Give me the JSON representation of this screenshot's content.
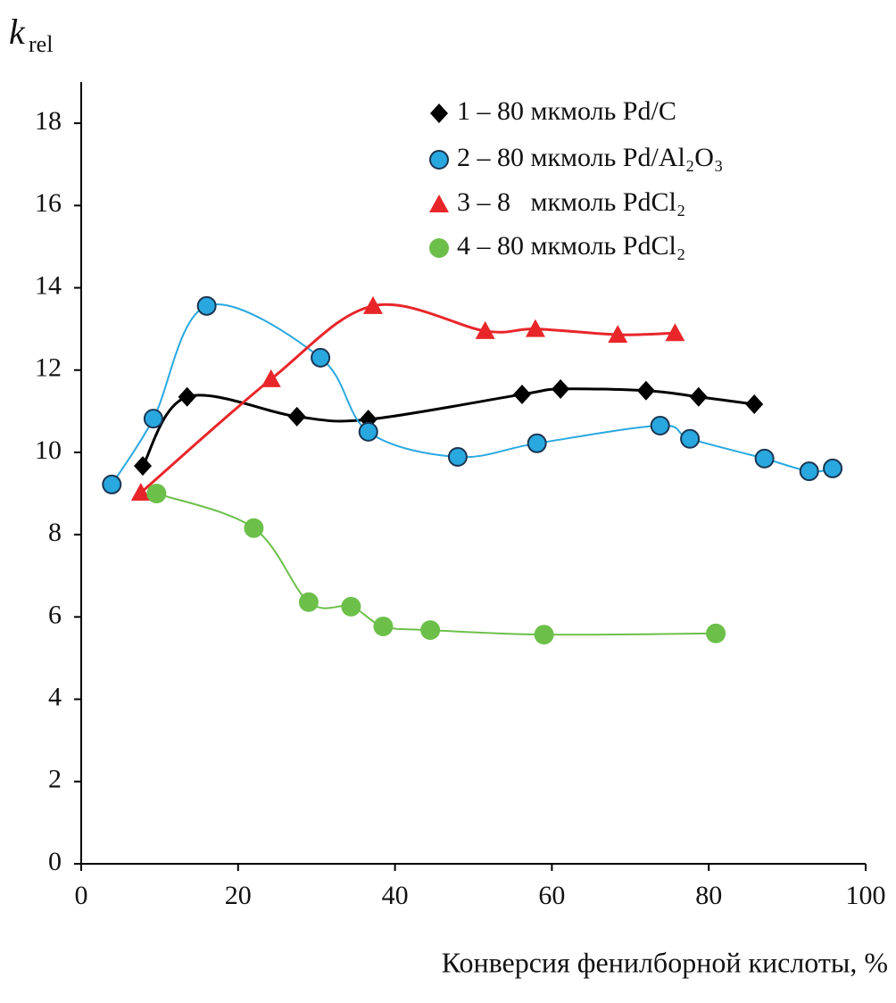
{
  "chart_data": {
    "type": "scatter",
    "y_label": {
      "main": "k",
      "sub": "rel"
    },
    "x_label": "Конверсия фенилборной кислоты, %",
    "xlim": [
      0,
      100
    ],
    "xticks": [
      0,
      20,
      40,
      60,
      80,
      100
    ],
    "ylim": [
      0,
      19
    ],
    "yticks": [
      0,
      2,
      4,
      6,
      8,
      10,
      12,
      14,
      16,
      18
    ],
    "grid": false,
    "legend": "upper right",
    "smooth_lines": true,
    "series": [
      {
        "name": "1 – 80 мкмоль Pd/C",
        "color": "#000000",
        "marker": "diamond",
        "x": [
          7.85,
          13.5,
          27.5,
          36.6,
          56.2,
          61.1,
          72.0,
          78.7,
          85.8
        ],
        "values": [
          9.67,
          11.35,
          10.87,
          10.8,
          11.41,
          11.54,
          11.5,
          11.35,
          11.17
        ]
      },
      {
        "name": "2 – 80 мкмоль Pd/Al₂O₃",
        "color": "#29a8e0",
        "marker": "circle",
        "x": [
          3.9,
          9.2,
          16.0,
          30.5,
          36.6,
          48.0,
          58.1,
          73.8,
          77.6,
          87.1,
          92.8,
          95.8
        ],
        "values": [
          9.22,
          10.82,
          13.56,
          12.3,
          10.5,
          9.89,
          10.22,
          10.65,
          10.33,
          9.85,
          9.54,
          9.61
        ]
      },
      {
        "name": "3 – 8   мкмоль PdCl₂",
        "color": "#e8262a",
        "marker": "triangle",
        "x": [
          7.6,
          24.2,
          37.2,
          51.5,
          57.9,
          68.4,
          75.7
        ],
        "values": [
          9.02,
          11.78,
          13.56,
          12.95,
          13.0,
          12.86,
          12.9
        ]
      },
      {
        "name": "4 – 80 мкмоль PdCl₂",
        "color": "#6cc04a",
        "marker": "dot",
        "x": [
          9.6,
          22.0,
          29.0,
          34.4,
          38.5,
          44.5,
          59.0,
          80.9
        ],
        "values": [
          9.0,
          8.16,
          6.36,
          6.25,
          5.77,
          5.68,
          5.57,
          5.6
        ]
      }
    ]
  }
}
